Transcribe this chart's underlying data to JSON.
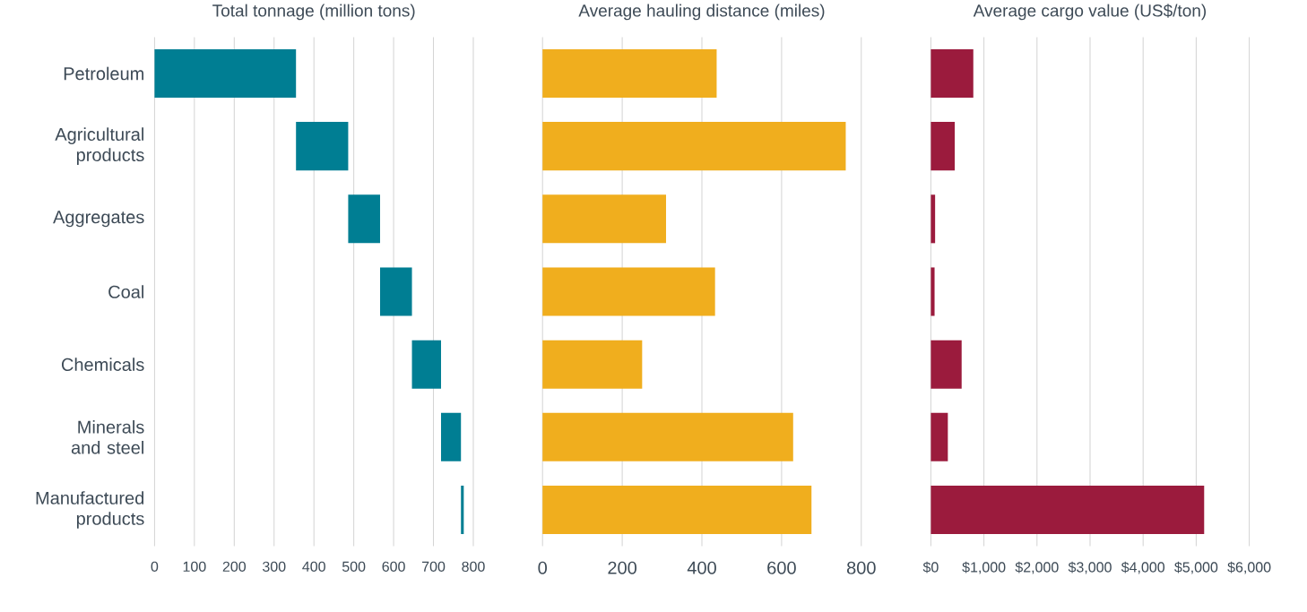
{
  "chart_data": [
    {
      "type": "bar",
      "orientation": "horizontal",
      "title": "Total tonnage (million tons)",
      "categories": [
        "Petroleum",
        "Agricultural products",
        "Aggregates",
        "Coal",
        "Chemicals",
        "Minerals and steel",
        "Manufactured products"
      ],
      "base": [
        0,
        355,
        486,
        566,
        646,
        719,
        769
      ],
      "values": [
        355,
        131,
        80,
        80,
        73,
        50,
        7
      ],
      "color": "#007e93",
      "xlim": [
        0,
        800
      ],
      "xticks": [
        0,
        100,
        200,
        300,
        400,
        500,
        600,
        700,
        800
      ],
      "grid": "x"
    },
    {
      "type": "bar",
      "orientation": "horizontal",
      "title": "Average hauling distance (miles)",
      "categories": [
        null,
        null,
        null,
        null,
        null,
        null,
        null
      ],
      "values": [
        437,
        761,
        310,
        433,
        250,
        629,
        675
      ],
      "color": "#f0ae1e",
      "xlim": [
        0,
        800
      ],
      "xticks": [
        0,
        200,
        400,
        600,
        800
      ],
      "grid": "x",
      "tick_labels": "x"
    },
    {
      "type": "bar",
      "orientation": "horizontal",
      "title": "Average cargo value (US$/ton)",
      "categories": [
        null,
        null,
        null,
        null,
        null,
        null,
        null
      ],
      "values": [
        800,
        450,
        80,
        70,
        580,
        320,
        5150
      ],
      "color": "#9b1b3d",
      "xlim": [
        0,
        6000
      ],
      "xticks": [
        {
          "value": 0,
          "label": "$0"
        },
        {
          "value": 1000,
          "label": "$1,000"
        },
        {
          "value": 2000,
          "label": "$2,000"
        },
        {
          "value": 3000,
          "label": "$3,000"
        },
        {
          "value": 4000,
          "label": "$4,000"
        },
        {
          "value": 5000,
          "label": "$5,000"
        },
        {
          "value": 6000,
          "label": "$6,000"
        }
      ],
      "grid": "x",
      "tick_labels": "x"
    }
  ]
}
